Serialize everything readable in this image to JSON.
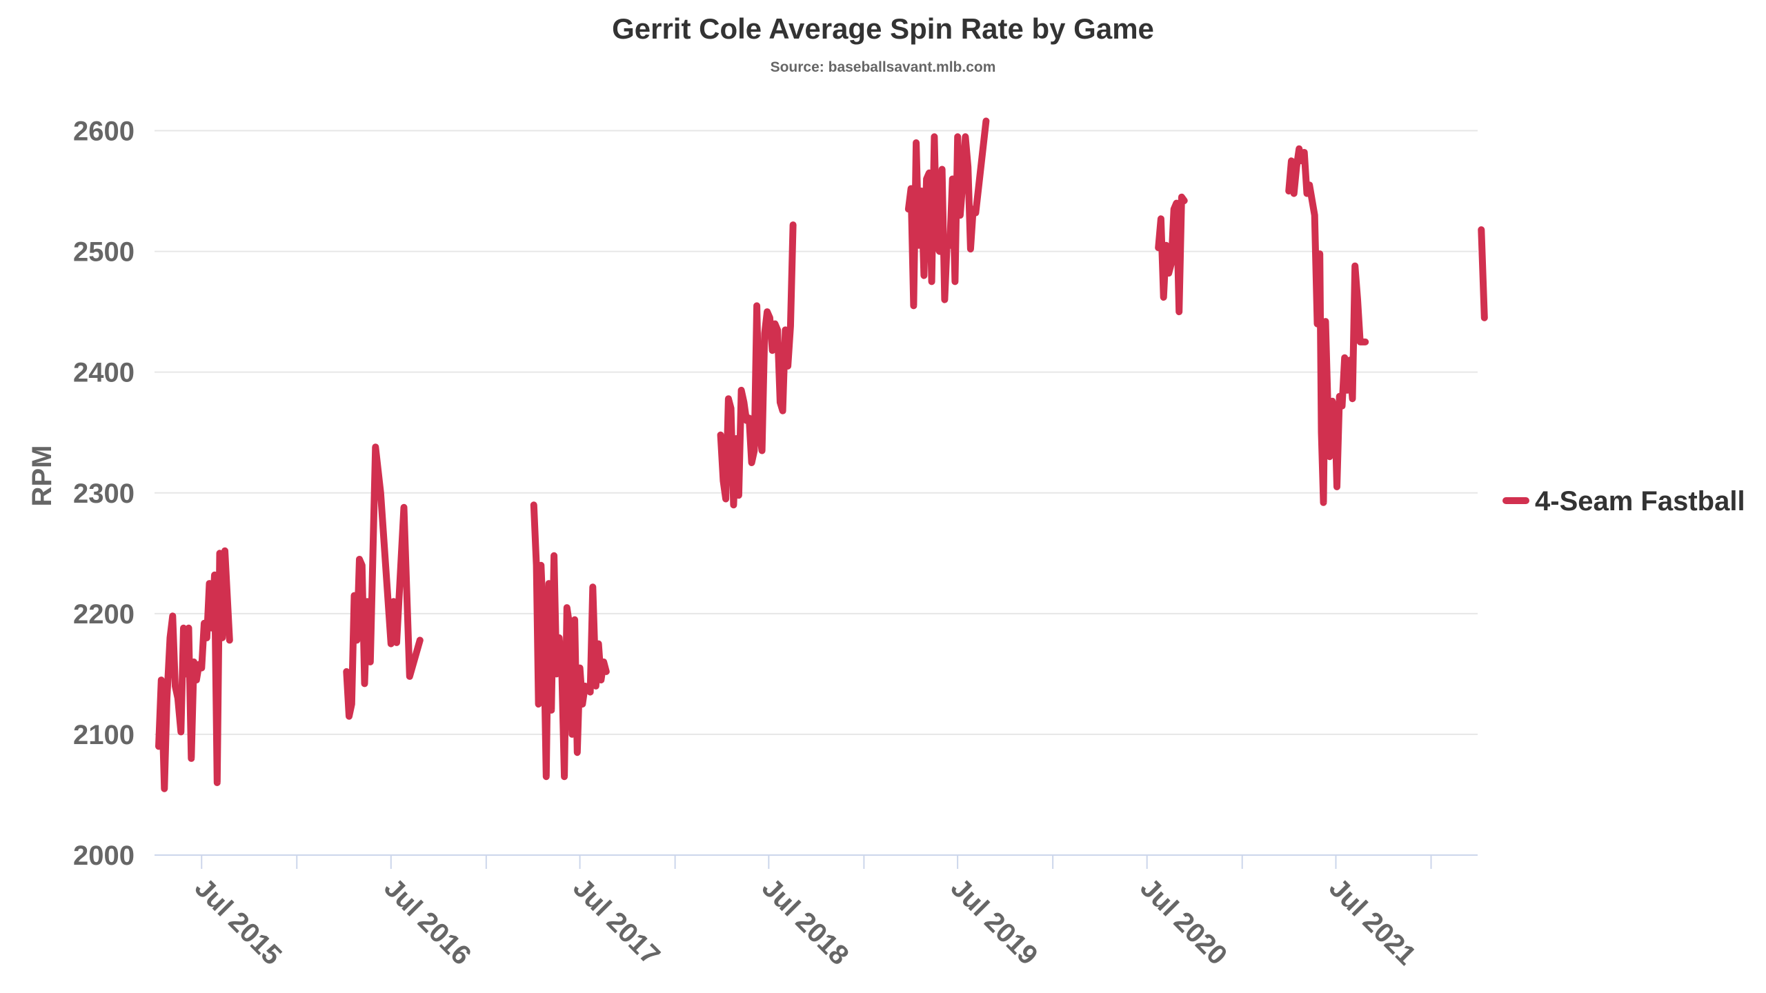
{
  "chart_data": {
    "type": "line",
    "title": "Gerrit Cole Average Spin Rate by Game",
    "subtitle": "Source: baseballsavant.mlb.com",
    "xlabel": "",
    "ylabel": "RPM",
    "ylim": [
      2000,
      2610
    ],
    "yticks": [
      2000,
      2100,
      2200,
      2300,
      2400,
      2500,
      2600
    ],
    "xlim": [
      "2015-04-01",
      "2022-04-01"
    ],
    "xtick_labels": [
      "Jul 2015",
      "Jul 2016",
      "Jul 2017",
      "Jul 2018",
      "Jul 2019",
      "Jul 2020",
      "Jul 2021"
    ],
    "xtick_dates": [
      "2015-07-01",
      "2016-07-01",
      "2017-07-01",
      "2018-07-01",
      "2019-07-01",
      "2020-07-01",
      "2021-07-01"
    ],
    "grid": true,
    "legend_position": "right",
    "series": [
      {
        "name": "4-Seam Fastball",
        "color": "#d1304f",
        "segments": [
          [
            [
              "2015-04-09",
              2090
            ],
            [
              "2015-04-14",
              2145
            ],
            [
              "2015-04-20",
              2055
            ],
            [
              "2015-04-25",
              2130
            ],
            [
              "2015-05-01",
              2180
            ],
            [
              "2015-05-06",
              2198
            ],
            [
              "2015-05-11",
              2140
            ],
            [
              "2015-05-16",
              2130
            ],
            [
              "2015-05-22",
              2102
            ],
            [
              "2015-05-27",
              2188
            ],
            [
              "2015-06-01",
              2150
            ],
            [
              "2015-06-06",
              2188
            ],
            [
              "2015-06-11",
              2080
            ],
            [
              "2015-06-16",
              2160
            ],
            [
              "2015-06-21",
              2145
            ],
            [
              "2015-06-26",
              2158
            ],
            [
              "2015-07-01",
              2155
            ],
            [
              "2015-07-06",
              2192
            ],
            [
              "2015-07-11",
              2180
            ],
            [
              "2015-07-16",
              2225
            ],
            [
              "2015-07-21",
              2188
            ],
            [
              "2015-07-26",
              2232
            ],
            [
              "2015-07-31",
              2060
            ],
            [
              "2015-08-05",
              2250
            ],
            [
              "2015-08-10",
              2180
            ],
            [
              "2015-08-15",
              2252
            ],
            [
              "2015-08-24",
              2178
            ]
          ],
          [
            [
              "2016-04-06",
              2152
            ],
            [
              "2016-04-11",
              2115
            ],
            [
              "2016-04-16",
              2125
            ],
            [
              "2016-04-21",
              2215
            ],
            [
              "2016-04-26",
              2178
            ],
            [
              "2016-05-01",
              2245
            ],
            [
              "2016-05-06",
              2240
            ],
            [
              "2016-05-11",
              2142
            ],
            [
              "2016-05-16",
              2210
            ],
            [
              "2016-05-22",
              2160
            ],
            [
              "2016-06-01",
              2338
            ],
            [
              "2016-06-11",
              2300
            ],
            [
              "2016-07-01",
              2175
            ],
            [
              "2016-07-06",
              2210
            ],
            [
              "2016-07-12",
              2176
            ],
            [
              "2016-07-26",
              2288
            ],
            [
              "2016-08-06",
              2148
            ],
            [
              "2016-08-26",
              2178
            ]
          ],
          [
            [
              "2017-04-03",
              2290
            ],
            [
              "2017-04-08",
              2240
            ],
            [
              "2017-04-12",
              2125
            ],
            [
              "2017-04-17",
              2240
            ],
            [
              "2017-04-22",
              2185
            ],
            [
              "2017-04-27",
              2065
            ],
            [
              "2017-05-02",
              2225
            ],
            [
              "2017-05-07",
              2120
            ],
            [
              "2017-05-12",
              2248
            ],
            [
              "2017-05-17",
              2150
            ],
            [
              "2017-05-22",
              2180
            ],
            [
              "2017-05-27",
              2155
            ],
            [
              "2017-06-01",
              2065
            ],
            [
              "2017-06-06",
              2205
            ],
            [
              "2017-06-11",
              2190
            ],
            [
              "2017-06-16",
              2100
            ],
            [
              "2017-06-21",
              2195
            ],
            [
              "2017-06-26",
              2085
            ],
            [
              "2017-07-01",
              2155
            ],
            [
              "2017-07-06",
              2125
            ],
            [
              "2017-07-11",
              2140
            ],
            [
              "2017-07-21",
              2135
            ],
            [
              "2017-07-26",
              2222
            ],
            [
              "2017-08-01",
              2140
            ],
            [
              "2017-08-06",
              2175
            ],
            [
              "2017-08-11",
              2145
            ],
            [
              "2017-08-16",
              2160
            ],
            [
              "2017-08-21",
              2152
            ]
          ],
          [
            [
              "2018-03-30",
              2348
            ],
            [
              "2018-04-04",
              2310
            ],
            [
              "2018-04-09",
              2295
            ],
            [
              "2018-04-14",
              2378
            ],
            [
              "2018-04-19",
              2370
            ],
            [
              "2018-04-24",
              2290
            ],
            [
              "2018-04-29",
              2345
            ],
            [
              "2018-05-04",
              2298
            ],
            [
              "2018-05-09",
              2385
            ],
            [
              "2018-05-14",
              2375
            ],
            [
              "2018-05-19",
              2360
            ],
            [
              "2018-05-24",
              2362
            ],
            [
              "2018-05-29",
              2325
            ],
            [
              "2018-06-03",
              2335
            ],
            [
              "2018-06-08",
              2455
            ],
            [
              "2018-06-13",
              2350
            ],
            [
              "2018-06-18",
              2335
            ],
            [
              "2018-06-23",
              2432
            ],
            [
              "2018-06-28",
              2450
            ],
            [
              "2018-07-03",
              2445
            ],
            [
              "2018-07-08",
              2418
            ],
            [
              "2018-07-13",
              2440
            ],
            [
              "2018-07-18",
              2435
            ],
            [
              "2018-07-23",
              2375
            ],
            [
              "2018-07-28",
              2368
            ],
            [
              "2018-08-02",
              2435
            ],
            [
              "2018-08-07",
              2405
            ],
            [
              "2018-08-12",
              2438
            ],
            [
              "2018-08-17",
              2522
            ]
          ],
          [
            [
              "2019-03-28",
              2535
            ],
            [
              "2019-04-02",
              2552
            ],
            [
              "2019-04-07",
              2455
            ],
            [
              "2019-04-12",
              2590
            ],
            [
              "2019-04-17",
              2505
            ],
            [
              "2019-04-22",
              2550
            ],
            [
              "2019-04-27",
              2480
            ],
            [
              "2019-05-02",
              2560
            ],
            [
              "2019-05-07",
              2565
            ],
            [
              "2019-05-12",
              2475
            ],
            [
              "2019-05-17",
              2595
            ],
            [
              "2019-05-22",
              2505
            ],
            [
              "2019-05-27",
              2500
            ],
            [
              "2019-06-01",
              2568
            ],
            [
              "2019-06-06",
              2460
            ],
            [
              "2019-06-11",
              2510
            ],
            [
              "2019-06-16",
              2505
            ],
            [
              "2019-06-21",
              2560
            ],
            [
              "2019-06-26",
              2475
            ],
            [
              "2019-07-01",
              2595
            ],
            [
              "2019-07-06",
              2530
            ],
            [
              "2019-07-11",
              2558
            ],
            [
              "2019-07-16",
              2595
            ],
            [
              "2019-07-21",
              2570
            ],
            [
              "2019-07-26",
              2502
            ],
            [
              "2019-07-31",
              2535
            ],
            [
              "2019-08-05",
              2532
            ],
            [
              "2019-08-15",
              2570
            ],
            [
              "2019-08-25",
              2608
            ]
          ],
          [
            [
              "2020-07-23",
              2503
            ],
            [
              "2020-07-28",
              2527
            ],
            [
              "2020-08-02",
              2462
            ],
            [
              "2020-08-07",
              2505
            ],
            [
              "2020-08-12",
              2482
            ],
            [
              "2020-08-17",
              2490
            ],
            [
              "2020-08-22",
              2535
            ],
            [
              "2020-08-27",
              2540
            ],
            [
              "2020-09-01",
              2450
            ],
            [
              "2020-09-06",
              2545
            ],
            [
              "2020-09-11",
              2542
            ]
          ],
          [
            [
              "2021-04-01",
              2550
            ],
            [
              "2021-04-06",
              2575
            ],
            [
              "2021-04-11",
              2548
            ],
            [
              "2021-04-16",
              2570
            ],
            [
              "2021-04-21",
              2585
            ],
            [
              "2021-04-26",
              2575
            ],
            [
              "2021-05-01",
              2582
            ],
            [
              "2021-05-06",
              2548
            ],
            [
              "2021-05-11",
              2555
            ],
            [
              "2021-05-21",
              2530
            ],
            [
              "2021-05-26",
              2440
            ],
            [
              "2021-05-31",
              2498
            ],
            [
              "2021-06-03",
              2350
            ],
            [
              "2021-06-07",
              2292
            ],
            [
              "2021-06-11",
              2442
            ],
            [
              "2021-06-15",
              2380
            ],
            [
              "2021-06-19",
              2330
            ],
            [
              "2021-06-24",
              2376
            ],
            [
              "2021-06-29",
              2368
            ],
            [
              "2021-07-03",
              2305
            ],
            [
              "2021-07-08",
              2380
            ],
            [
              "2021-07-13",
              2372
            ],
            [
              "2021-07-18",
              2412
            ],
            [
              "2021-07-23",
              2385
            ],
            [
              "2021-07-28",
              2410
            ],
            [
              "2021-08-02",
              2378
            ],
            [
              "2021-08-07",
              2488
            ],
            [
              "2021-08-12",
              2460
            ],
            [
              "2021-08-17",
              2425
            ],
            [
              "2021-08-27",
              2425
            ]
          ],
          [
            [
              "2022-04-08",
              2518
            ],
            [
              "2022-04-14",
              2445
            ]
          ]
        ]
      }
    ]
  }
}
